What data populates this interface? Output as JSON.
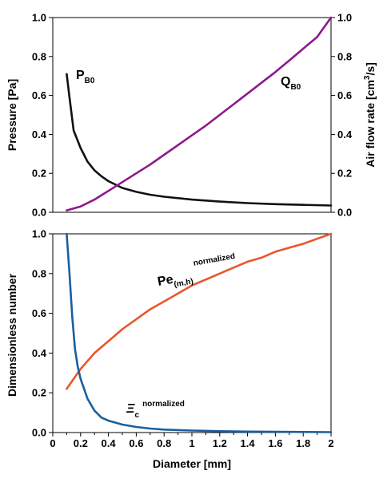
{
  "chart_data": [
    {
      "type": "line",
      "panel": "top",
      "xlim": [
        0,
        2
      ],
      "ylim": [
        0,
        1
      ],
      "y2lim": [
        0,
        1
      ],
      "yticks": [
        "0.0",
        "0.2",
        "0.4",
        "0.6",
        "0.8",
        "1.0"
      ],
      "y2ticks": [
        "0.0",
        "0.2",
        "0.4",
        "0.6",
        "0.8",
        "1.0"
      ],
      "ylabel": "Pressure [Pa]",
      "y2label_main": "Air flow rate [cm",
      "y2label_sup": "3",
      "y2label_tail": "/s]",
      "grid": false,
      "legend": "none",
      "series": [
        {
          "label_main": "P",
          "label_sub": "B0",
          "axis": "left",
          "color": "#111111",
          "x": [
            0.1,
            0.12,
            0.15,
            0.2,
            0.25,
            0.3,
            0.35,
            0.4,
            0.5,
            0.6,
            0.7,
            0.8,
            1.0,
            1.2,
            1.4,
            1.6,
            1.8,
            2.0
          ],
          "y": [
            0.71,
            0.59,
            0.42,
            0.33,
            0.26,
            0.215,
            0.185,
            0.16,
            0.125,
            0.105,
            0.09,
            0.08,
            0.065,
            0.055,
            0.047,
            0.042,
            0.038,
            0.035
          ]
        },
        {
          "label_main": "Q",
          "label_sub": "B0",
          "axis": "right",
          "color": "#8b1a8b",
          "x": [
            0.1,
            0.2,
            0.3,
            0.4,
            0.5,
            0.6,
            0.7,
            0.8,
            0.9,
            1.0,
            1.1,
            1.2,
            1.3,
            1.4,
            1.5,
            1.6,
            1.7,
            1.8,
            1.9,
            2.0
          ],
          "y": [
            0.01,
            0.03,
            0.065,
            0.11,
            0.155,
            0.2,
            0.245,
            0.295,
            0.345,
            0.395,
            0.445,
            0.5,
            0.555,
            0.61,
            0.665,
            0.72,
            0.78,
            0.84,
            0.9,
            1.0
          ]
        }
      ]
    },
    {
      "type": "line",
      "panel": "bottom",
      "xlim": [
        0,
        2
      ],
      "ylim": [
        0,
        1
      ],
      "xticks": [
        "0",
        "0.2",
        "0.4",
        "0.6",
        "0.8",
        "1",
        "1.2",
        "1.4",
        "1.6",
        "1.8",
        "2"
      ],
      "yticks": [
        "0.0",
        "0.2",
        "0.4",
        "0.6",
        "0.8",
        "1.0"
      ],
      "xlabel": "Diameter [mm]",
      "ylabel": "Dimensionless number",
      "grid": false,
      "legend": "none",
      "series": [
        {
          "label_main": "Pe",
          "label_sub": "(m,h)",
          "label_sup": "normalized",
          "color": "#e8572a",
          "x": [
            0.1,
            0.15,
            0.2,
            0.3,
            0.4,
            0.5,
            0.6,
            0.7,
            0.8,
            0.9,
            1.0,
            1.1,
            1.2,
            1.3,
            1.4,
            1.5,
            1.6,
            1.7,
            1.8,
            1.9,
            2.0
          ],
          "y": [
            0.22,
            0.27,
            0.32,
            0.4,
            0.46,
            0.52,
            0.57,
            0.62,
            0.66,
            0.7,
            0.74,
            0.77,
            0.8,
            0.83,
            0.86,
            0.88,
            0.91,
            0.93,
            0.95,
            0.975,
            1.0
          ]
        },
        {
          "label_main": "Ξ",
          "label_sub": "c",
          "label_sup": "normalized",
          "color": "#1a5fa0",
          "x": [
            0.1,
            0.12,
            0.14,
            0.16,
            0.18,
            0.2,
            0.25,
            0.3,
            0.35,
            0.4,
            0.5,
            0.6,
            0.7,
            0.8,
            1.0,
            1.2,
            1.4,
            1.6,
            1.8,
            2.0
          ],
          "y": [
            1.0,
            0.8,
            0.58,
            0.42,
            0.33,
            0.27,
            0.17,
            0.11,
            0.075,
            0.06,
            0.04,
            0.028,
            0.02,
            0.015,
            0.01,
            0.007,
            0.005,
            0.004,
            0.003,
            0.002
          ]
        }
      ]
    }
  ]
}
